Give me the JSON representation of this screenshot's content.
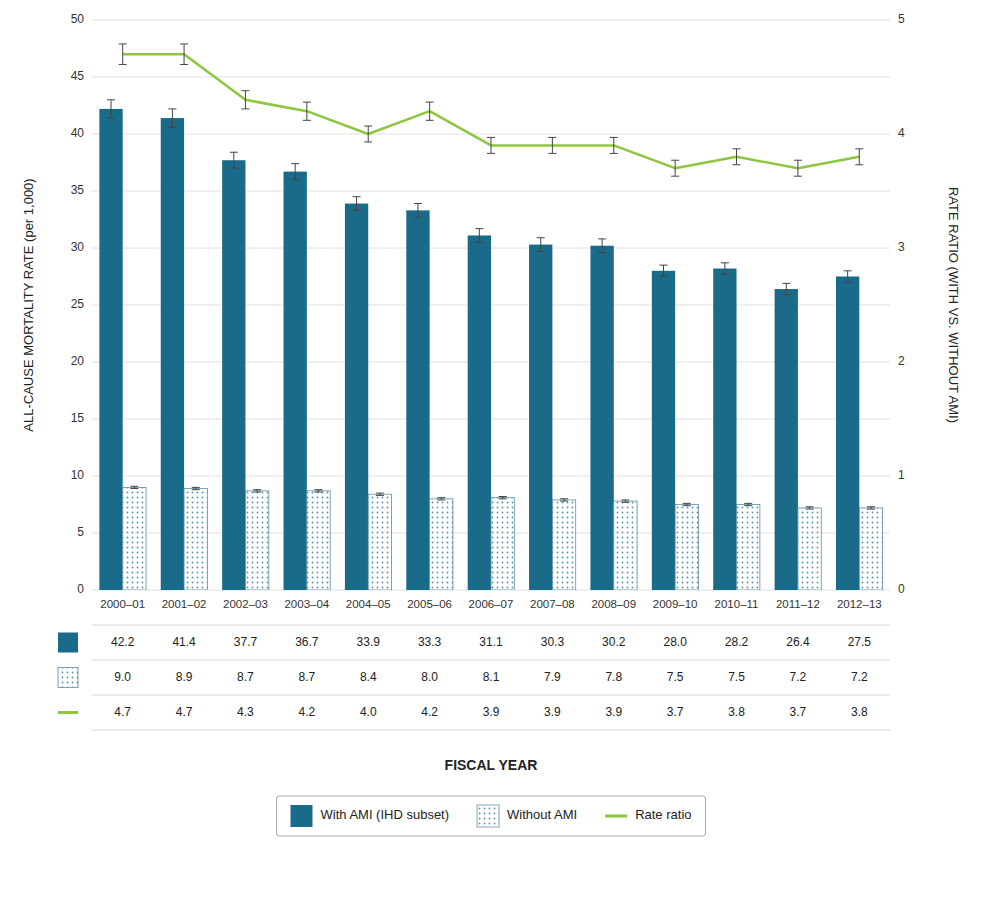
{
  "chart_data": {
    "type": "bar",
    "x_label": "FISCAL YEAR",
    "y_label": "ALL-CAUSE MORTALITY RATE (per 1,000)",
    "y2_label": "RATE RATIO (WITH VS. WITHOUT AMI)",
    "categories": [
      "2000–01",
      "2001–02",
      "2002–03",
      "2003–04",
      "2004–05",
      "2005–06",
      "2006–07",
      "2007–08",
      "2008–09",
      "2009–10",
      "2010–11",
      "2011–12",
      "2012–13"
    ],
    "series": [
      {
        "name": "With AMI (IHD subset)",
        "type": "bar",
        "color": "#1a6b8a",
        "values": [
          42.2,
          41.4,
          37.7,
          36.7,
          33.9,
          33.3,
          31.1,
          30.3,
          30.2,
          28.0,
          28.2,
          26.4,
          27.5
        ],
        "value_labels": [
          "42.2",
          "41.4",
          "37.7",
          "36.7",
          "33.9",
          "33.3",
          "31.1",
          "30.3",
          "30.2",
          "28.0",
          "28.2",
          "26.4",
          "27.5"
        ],
        "errors": [
          0.8,
          0.8,
          0.7,
          0.7,
          0.6,
          0.6,
          0.6,
          0.6,
          0.6,
          0.5,
          0.5,
          0.5,
          0.5
        ]
      },
      {
        "name": "Without AMI",
        "type": "bar",
        "color": "#5a8fa8",
        "values": [
          9.0,
          8.9,
          8.7,
          8.7,
          8.4,
          8.0,
          8.1,
          7.9,
          7.8,
          7.5,
          7.5,
          7.2,
          7.2
        ],
        "value_labels": [
          "9.0",
          "8.9",
          "8.7",
          "8.7",
          "8.4",
          "8.0",
          "8.1",
          "7.9",
          "7.8",
          "7.5",
          "7.5",
          "7.2",
          "7.2"
        ],
        "errors": [
          0.1,
          0.1,
          0.1,
          0.1,
          0.1,
          0.1,
          0.1,
          0.1,
          0.1,
          0.1,
          0.1,
          0.1,
          0.1
        ]
      },
      {
        "name": "Rate ratio",
        "type": "line",
        "axis": "y2",
        "color": "#8dc63f",
        "values": [
          4.7,
          4.7,
          4.3,
          4.2,
          4.0,
          4.2,
          3.9,
          3.9,
          3.9,
          3.7,
          3.8,
          3.7,
          3.8
        ],
        "value_labels": [
          "4.7",
          "4.7",
          "4.3",
          "4.2",
          "4.0",
          "4.2",
          "3.9",
          "3.9",
          "3.9",
          "3.7",
          "3.8",
          "3.7",
          "3.8"
        ],
        "errors": [
          0.09,
          0.09,
          0.08,
          0.08,
          0.07,
          0.08,
          0.07,
          0.07,
          0.07,
          0.07,
          0.07,
          0.07,
          0.07
        ]
      }
    ],
    "ylim": [
      0,
      50
    ],
    "yticks": [
      0,
      5,
      10,
      15,
      20,
      25,
      30,
      35,
      40,
      45,
      50
    ],
    "y2lim": [
      0,
      5
    ],
    "y2ticks": [
      0,
      1,
      2,
      3,
      4,
      5
    ],
    "grid": true,
    "legend": "bottom",
    "data_labels": true
  }
}
